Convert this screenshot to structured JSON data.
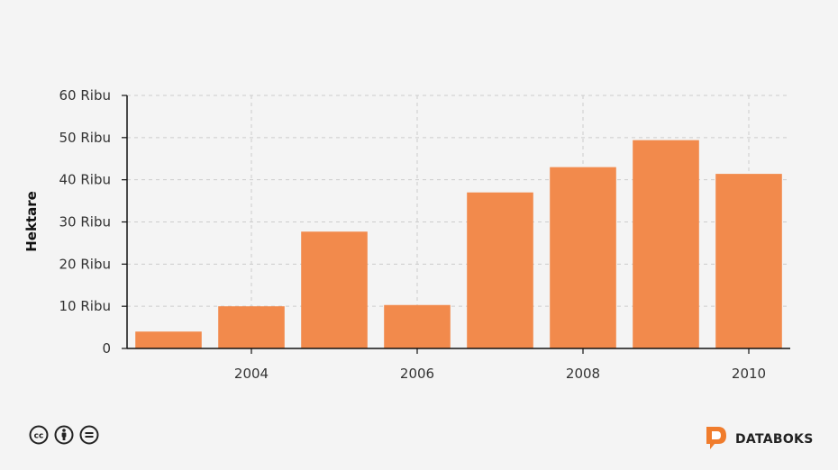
{
  "chart_data": {
    "type": "bar",
    "x": [
      2003,
      2004,
      2005,
      2006,
      2007,
      2008,
      2009,
      2010
    ],
    "values": [
      4000,
      10000,
      27700,
      10300,
      37000,
      43000,
      49400,
      41400
    ],
    "ylabel": "Hektare",
    "ylim": [
      0,
      60000
    ],
    "yticks": [
      0,
      10000,
      20000,
      30000,
      40000,
      50000,
      60000
    ],
    "ytick_labels": [
      "0",
      "10 Ribu",
      "20 Ribu",
      "30 Ribu",
      "40 Ribu",
      "50 Ribu",
      "60 Ribu"
    ],
    "xticks": [
      2004,
      2006,
      2008,
      2010
    ],
    "xtick_labels": [
      "2004",
      "2006",
      "2008",
      "2010"
    ],
    "grid": true,
    "bar_color": "#f28a4c"
  },
  "brand": {
    "name": "DATABOKS",
    "logo_letter": "D",
    "logo_color": "#f07c2c"
  },
  "license_icons": [
    "cc-icon",
    "attribution-icon",
    "no-derivatives-icon"
  ]
}
